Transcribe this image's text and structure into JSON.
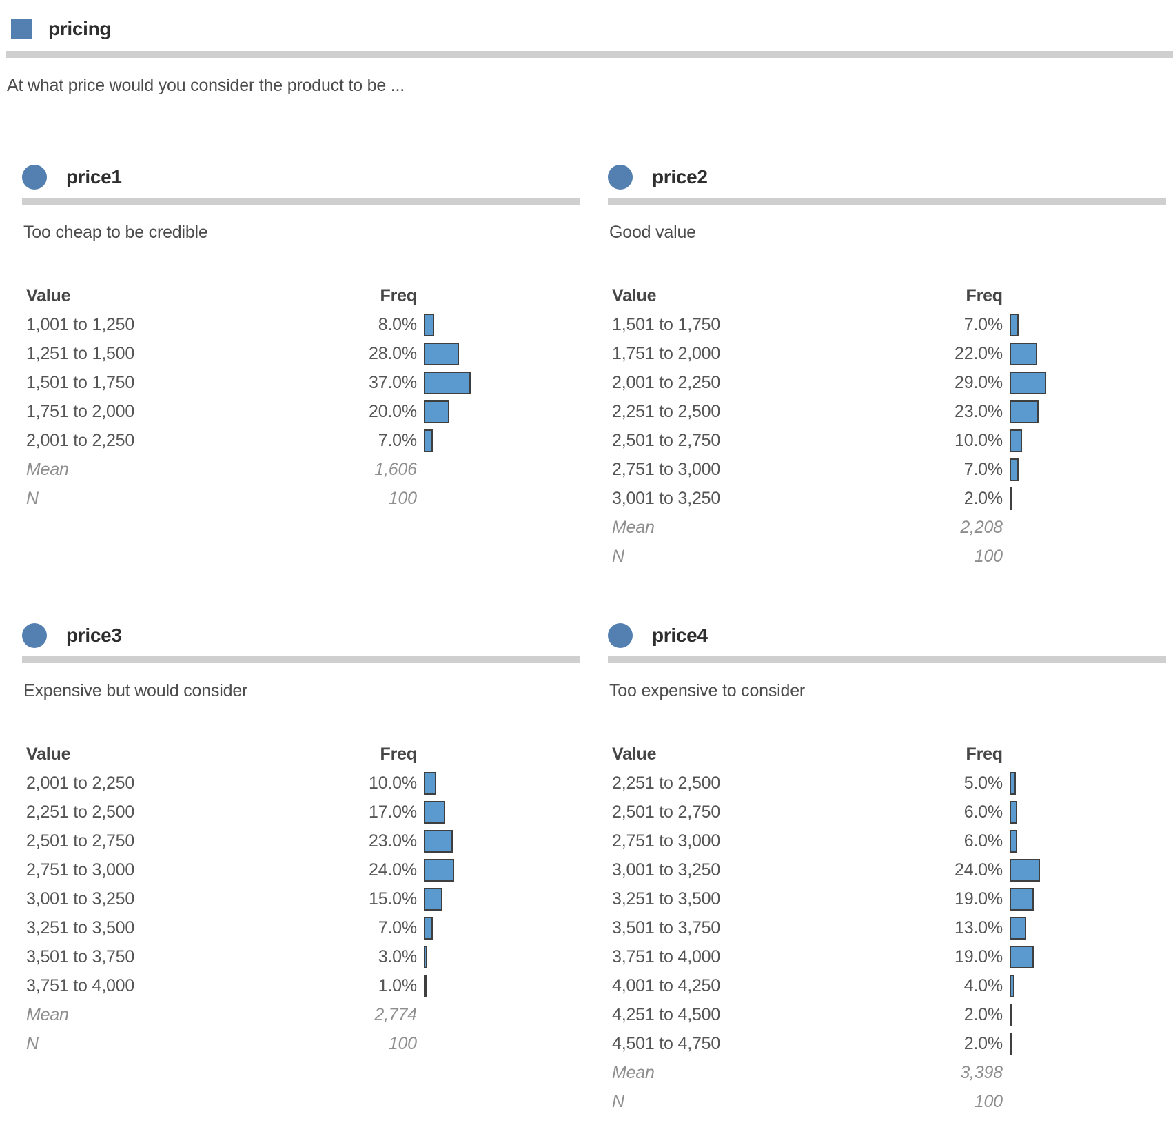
{
  "page": {
    "title": "pricing",
    "subtitle": "At what price would you consider the product to be ...",
    "accent_color": "#5480b1",
    "bar_fill_color": "#5b9ace",
    "bar_border_color": "#3f3f3f",
    "rule_color": "#cfcfcf"
  },
  "table_headers": {
    "value": "Value",
    "freq": "Freq"
  },
  "stat_labels": {
    "mean": "Mean",
    "n": "N"
  },
  "sections": [
    {
      "title": "price1",
      "description": "Too cheap to be credible",
      "rows": [
        {
          "value": "1,001 to 1,250",
          "freq": "8.0%",
          "pct": 8
        },
        {
          "value": "1,251 to 1,500",
          "freq": "28.0%",
          "pct": 28
        },
        {
          "value": "1,501 to 1,750",
          "freq": "37.0%",
          "pct": 37
        },
        {
          "value": "1,751 to 2,000",
          "freq": "20.0%",
          "pct": 20
        },
        {
          "value": "2,001 to 2,250",
          "freq": "7.0%",
          "pct": 7
        }
      ],
      "mean": "1,606",
      "n": "100"
    },
    {
      "title": "price2",
      "description": "Good value",
      "rows": [
        {
          "value": "1,501 to 1,750",
          "freq": "7.0%",
          "pct": 7
        },
        {
          "value": "1,751 to 2,000",
          "freq": "22.0%",
          "pct": 22
        },
        {
          "value": "2,001 to 2,250",
          "freq": "29.0%",
          "pct": 29
        },
        {
          "value": "2,251 to 2,500",
          "freq": "23.0%",
          "pct": 23
        },
        {
          "value": "2,501 to 2,750",
          "freq": "10.0%",
          "pct": 10
        },
        {
          "value": "2,751 to 3,000",
          "freq": "7.0%",
          "pct": 7
        },
        {
          "value": "3,001 to 3,250",
          "freq": "2.0%",
          "pct": 2
        }
      ],
      "mean": "2,208",
      "n": "100"
    },
    {
      "title": "price3",
      "description": "Expensive but would consider",
      "rows": [
        {
          "value": "2,001 to 2,250",
          "freq": "10.0%",
          "pct": 10
        },
        {
          "value": "2,251 to 2,500",
          "freq": "17.0%",
          "pct": 17
        },
        {
          "value": "2,501 to 2,750",
          "freq": "23.0%",
          "pct": 23
        },
        {
          "value": "2,751 to 3,000",
          "freq": "24.0%",
          "pct": 24
        },
        {
          "value": "3,001 to 3,250",
          "freq": "15.0%",
          "pct": 15
        },
        {
          "value": "3,251 to 3,500",
          "freq": "7.0%",
          "pct": 7
        },
        {
          "value": "3,501 to 3,750",
          "freq": "3.0%",
          "pct": 3
        },
        {
          "value": "3,751 to 4,000",
          "freq": "1.0%",
          "pct": 1
        }
      ],
      "mean": "2,774",
      "n": "100"
    },
    {
      "title": "price4",
      "description": "Too expensive to consider",
      "rows": [
        {
          "value": "2,251 to 2,500",
          "freq": "5.0%",
          "pct": 5
        },
        {
          "value": "2,501 to 2,750",
          "freq": "6.0%",
          "pct": 6
        },
        {
          "value": "2,751 to 3,000",
          "freq": "6.0%",
          "pct": 6
        },
        {
          "value": "3,001 to 3,250",
          "freq": "24.0%",
          "pct": 24
        },
        {
          "value": "3,251 to 3,500",
          "freq": "19.0%",
          "pct": 19
        },
        {
          "value": "3,501 to 3,750",
          "freq": "13.0%",
          "pct": 13
        },
        {
          "value": "3,751 to 4,000",
          "freq": "19.0%",
          "pct": 19
        },
        {
          "value": "4,001 to 4,250",
          "freq": "4.0%",
          "pct": 4
        },
        {
          "value": "4,251 to 4,500",
          "freq": "2.0%",
          "pct": 2
        },
        {
          "value": "4,501 to 4,750",
          "freq": "2.0%",
          "pct": 2
        }
      ],
      "mean": "3,398",
      "n": "100"
    }
  ],
  "chart_data": [
    {
      "type": "bar",
      "orientation": "horizontal",
      "title": "price1",
      "subtitle": "Too cheap to be credible",
      "unit": "percent",
      "categories": [
        "1,001 to 1,250",
        "1,251 to 1,500",
        "1,501 to 1,750",
        "1,751 to 2,000",
        "2,001 to 2,250"
      ],
      "values": [
        8.0,
        28.0,
        37.0,
        20.0,
        7.0
      ],
      "mean": 1606,
      "n": 100
    },
    {
      "type": "bar",
      "orientation": "horizontal",
      "title": "price2",
      "subtitle": "Good value",
      "unit": "percent",
      "categories": [
        "1,501 to 1,750",
        "1,751 to 2,000",
        "2,001 to 2,250",
        "2,251 to 2,500",
        "2,501 to 2,750",
        "2,751 to 3,000",
        "3,001 to 3,250"
      ],
      "values": [
        7.0,
        22.0,
        29.0,
        23.0,
        10.0,
        7.0,
        2.0
      ],
      "mean": 2208,
      "n": 100
    },
    {
      "type": "bar",
      "orientation": "horizontal",
      "title": "price3",
      "subtitle": "Expensive but would consider",
      "unit": "percent",
      "categories": [
        "2,001 to 2,250",
        "2,251 to 2,500",
        "2,501 to 2,750",
        "2,751 to 3,000",
        "3,001 to 3,250",
        "3,251 to 3,500",
        "3,501 to 3,750",
        "3,751 to 4,000"
      ],
      "values": [
        10.0,
        17.0,
        23.0,
        24.0,
        15.0,
        7.0,
        3.0,
        1.0
      ],
      "mean": 2774,
      "n": 100
    },
    {
      "type": "bar",
      "orientation": "horizontal",
      "title": "price4",
      "subtitle": "Too expensive to consider",
      "unit": "percent",
      "categories": [
        "2,251 to 2,500",
        "2,501 to 2,750",
        "2,751 to 3,000",
        "3,001 to 3,250",
        "3,251 to 3,500",
        "3,501 to 3,750",
        "3,751 to 4,000",
        "4,001 to 4,250",
        "4,251 to 4,500",
        "4,501 to 4,750"
      ],
      "values": [
        5.0,
        6.0,
        6.0,
        24.0,
        19.0,
        13.0,
        19.0,
        4.0,
        2.0,
        2.0
      ],
      "mean": 3398,
      "n": 100
    }
  ]
}
